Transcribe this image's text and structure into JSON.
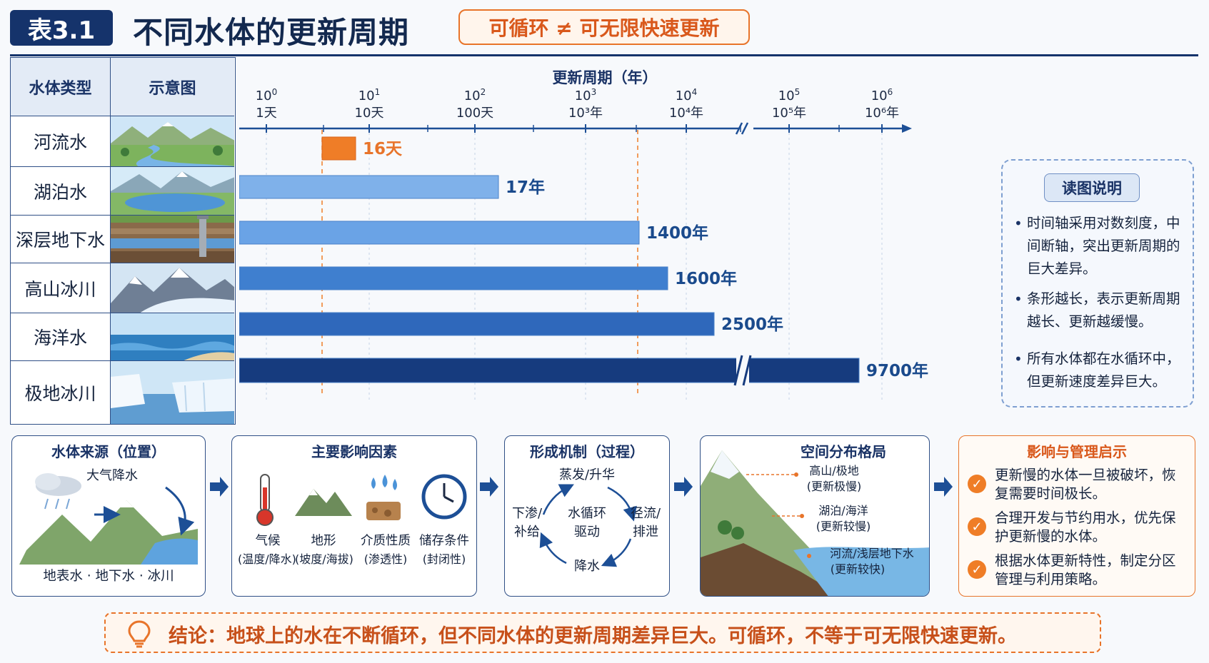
{
  "header": {
    "tag": "表3.1",
    "title": "不同水体的更新周期",
    "slogan": "可循环 ≠ 可无限快速更新"
  },
  "table": {
    "col_type": "水体类型",
    "col_image": "示意图"
  },
  "chart_data": {
    "type": "bar",
    "orientation": "horizontal",
    "title": "更新周期（年）",
    "x_scale": "log",
    "axis_break": "between 10^4 and 10^5",
    "ticks": [
      {
        "exp": "0",
        "label": "1天"
      },
      {
        "exp": "1",
        "label": "10天"
      },
      {
        "exp": "2",
        "label": "100天"
      },
      {
        "exp": "3",
        "label": "10³年"
      },
      {
        "exp": "4",
        "label": "10⁴年"
      },
      {
        "exp": "5",
        "label": "10⁵年"
      },
      {
        "exp": "6",
        "label": "10⁶年"
      }
    ],
    "categories": [
      "河流水",
      "湖泊水",
      "深层地下水",
      "高山冰川",
      "海洋水",
      "极地冰川"
    ],
    "values_days": [
      16,
      6205,
      511000,
      584000,
      912500,
      3540500
    ],
    "value_labels": [
      "16天",
      "17年",
      "1400年",
      "1600年",
      "2500年",
      "9700年"
    ],
    "bar_colors": [
      "#ef7d27",
      "#7fb1ea",
      "#6aa3e6",
      "#3f7fcf",
      "#2f68bb",
      "#163b7e"
    ],
    "reference_lines_days": [
      16,
      511000
    ]
  },
  "note": {
    "title": "读图说明",
    "bullets": [
      "时间轴采用对数刻度，中间断轴，突出更新周期的巨大差异。",
      "条形越长，表示更新周期越长、更新越缓慢。",
      "所有水体都在水循环中，但更新速度差异巨大。"
    ]
  },
  "panels": {
    "source": {
      "title": "水体来源（位置）",
      "rain_label": "大气降水",
      "bottom": "地表水 · 地下水 · 冰川"
    },
    "factors": {
      "title": "主要影响因素",
      "items": [
        {
          "name": "气候",
          "sub": "(温度/降水)"
        },
        {
          "name": "地形",
          "sub": "(坡度/海拔)"
        },
        {
          "name": "介质性质",
          "sub": "(渗透性)"
        },
        {
          "name": "储存条件",
          "sub": "(封闭性)"
        }
      ]
    },
    "mechanism": {
      "title": "形成机制（过程）",
      "top": "蒸发/升华",
      "left": "下渗/\n补给",
      "center": "水循环\n驱动",
      "right": "径流/\n排泄",
      "bottom": "降水"
    },
    "spatial": {
      "title": "空间分布格局",
      "labels": [
        {
          "name": "高山/极地",
          "sub": "(更新极慢)"
        },
        {
          "name": "湖泊/海洋",
          "sub": "(更新较慢)"
        },
        {
          "name": "河流/浅层地下水",
          "sub": "(更新较快)"
        }
      ]
    },
    "management": {
      "title": "影响与管理启示",
      "items": [
        "更新慢的水体一旦被破坏，恢复需要时间极长。",
        "合理开发与节约用水，优先保护更新慢的水体。",
        "根据水体更新特性，制定分区管理与利用策略。"
      ]
    }
  },
  "conclusion": {
    "lead": "结论：",
    "text": "地球上的水在不断循环，但不同水体的更新周期差异巨大。可循环，不等于可无限快速更新。"
  },
  "colors": {
    "navy": "#15336b",
    "accent_orange": "#e8742a"
  }
}
